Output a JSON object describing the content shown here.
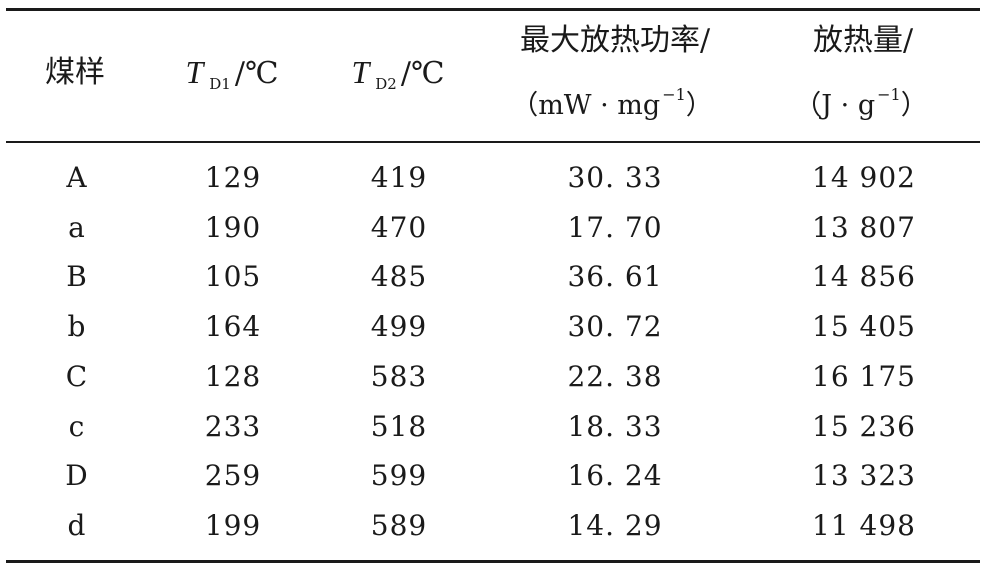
{
  "table": {
    "headers": {
      "sample": "煤样",
      "td1": {
        "symbol": "T",
        "subscript": "D1",
        "unit": "/℃"
      },
      "td2": {
        "symbol": "T",
        "subscript": "D2",
        "unit": "/℃"
      },
      "max_power": {
        "line1": "最大放热功率/",
        "line2_open": "（mW · mg",
        "line2_sup": "−1",
        "line2_close": "）"
      },
      "heat": {
        "line1": "放热量/",
        "line2_open": "（J · g",
        "line2_sup": "−1",
        "line2_close": "）"
      }
    },
    "rows": [
      {
        "sample": "A",
        "td1": "129",
        "td2": "419",
        "max_power": "30. 33",
        "heat": "14 902"
      },
      {
        "sample": "a",
        "td1": "190",
        "td2": "470",
        "max_power": "17. 70",
        "heat": "13 807"
      },
      {
        "sample": "B",
        "td1": "105",
        "td2": "485",
        "max_power": "36. 61",
        "heat": "14 856"
      },
      {
        "sample": "b",
        "td1": "164",
        "td2": "499",
        "max_power": "30. 72",
        "heat": "15 405"
      },
      {
        "sample": "C",
        "td1": "128",
        "td2": "583",
        "max_power": "22. 38",
        "heat": "16 175"
      },
      {
        "sample": "c",
        "td1": "233",
        "td2": "518",
        "max_power": "18. 33",
        "heat": "15 236"
      },
      {
        "sample": "D",
        "td1": "259",
        "td2": "599",
        "max_power": "16. 24",
        "heat": "13 323"
      },
      {
        "sample": "d",
        "td1": "199",
        "td2": "589",
        "max_power": "14. 29",
        "heat": "11 498"
      }
    ]
  }
}
